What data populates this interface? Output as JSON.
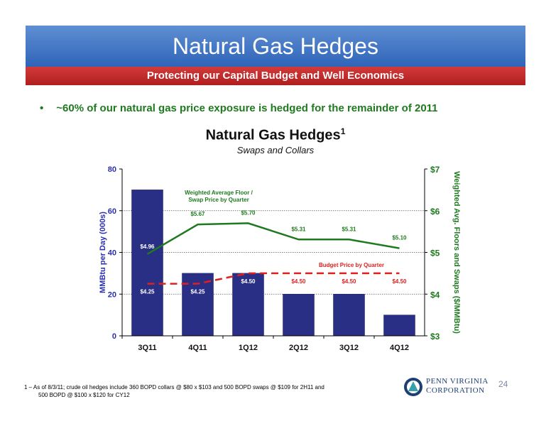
{
  "slide": {
    "title": "Natural Gas Hedges",
    "subtitle": "Protecting our Capital Budget and Well Economics",
    "bullet": "~60% of our natural gas price exposure is hedged for the remainder of 2011",
    "footnote_line1": "1 – As of 8/3/11; crude oil hedges include 360 BOPD collars @ $80 x $103 and 500 BOPD swaps @ $109 for 2H11 and",
    "footnote_line2": "500 BOPD @ $100 x $120 for CY12",
    "logo_line1": "PENN VIRGINIA",
    "logo_line2": "CORPORATION",
    "page_number": "24"
  },
  "colors": {
    "bar": "#2a2f86",
    "floor_line": "#1f7a1f",
    "budget_line": "#e02020",
    "left_axis": "#2a2fb0",
    "right_axis": "#1f7a1f"
  },
  "chart_data": {
    "type": "bar",
    "title": "Natural Gas Hedges",
    "title_superscript": "1",
    "subtitle": "Swaps and Collars",
    "categories": [
      "3Q11",
      "4Q11",
      "1Q12",
      "2Q12",
      "3Q12",
      "4Q12"
    ],
    "ylabel": "MMBtu per Day (000s)",
    "ylim": [
      0,
      80
    ],
    "yticks": [
      "0",
      "20",
      "40",
      "60",
      "80"
    ],
    "y2label": "Weighted Avg. Floors and Swaps ($/MMBtu)",
    "y2lim": [
      3,
      7
    ],
    "y2ticks": [
      "$3",
      "$4",
      "$5",
      "$6",
      "$7"
    ],
    "grid": true,
    "series": [
      {
        "kind": "bar",
        "axis": "left",
        "values": [
          70,
          30,
          30,
          20,
          20,
          10
        ]
      },
      {
        "kind": "line",
        "axis": "right",
        "name": "Weighted Average Floor / Swap Price by Quarter",
        "name_lines": [
          "Weighted Average Floor /",
          "Swap Price by Quarter"
        ],
        "values": [
          4.96,
          5.67,
          5.7,
          5.31,
          5.31,
          5.1
        ],
        "labels": [
          "$4.96",
          "$5.67",
          "$5.70",
          "$5.31",
          "$5.31",
          "$5.10"
        ]
      },
      {
        "kind": "dashed-line",
        "axis": "right",
        "name": "Budget Price by Quarter",
        "values": [
          4.25,
          4.25,
          4.5,
          4.5,
          4.5,
          4.5
        ],
        "labels": [
          "$4.25",
          "$4.25",
          "$4.50",
          "$4.50",
          "$4.50",
          "$4.50"
        ]
      }
    ]
  }
}
